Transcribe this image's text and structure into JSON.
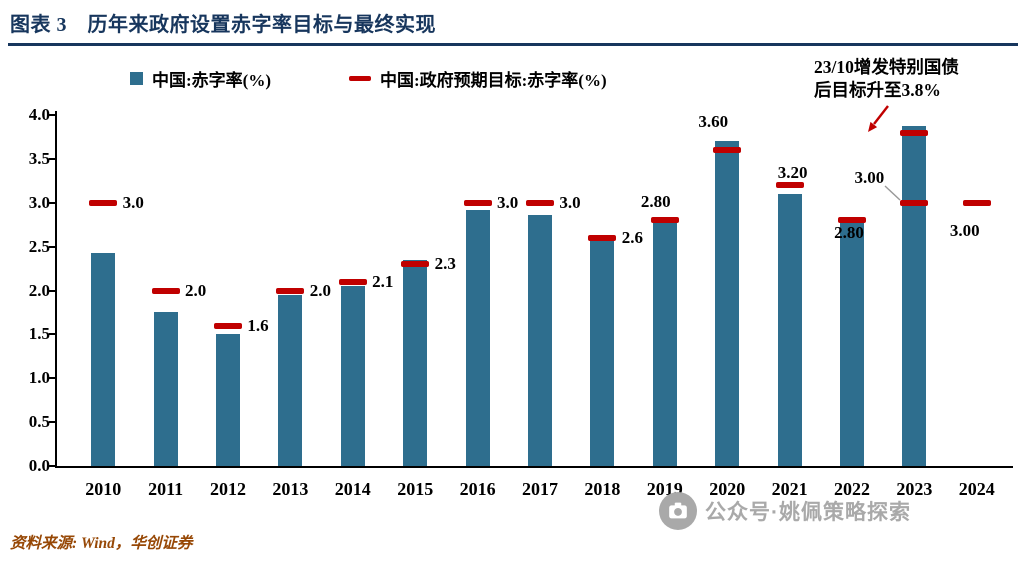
{
  "header": {
    "title": "图表 3　历年来政府设置赤字率目标与最终实现"
  },
  "legend": {
    "items": [
      {
        "label": "中国:赤字率(%)"
      },
      {
        "label": "中国:政府预期目标:赤字率(%)"
      }
    ]
  },
  "annotation": {
    "line1": "23/10增发特别国债",
    "line2": "后目标升至3.8%"
  },
  "source": {
    "text": "资料来源: Wind，华创证券"
  },
  "watermark": {
    "text": "公众号·姚佩策略探索"
  },
  "colors": {
    "bar": "#2e6e8e",
    "target": "#c00000",
    "title_navy": "#17365d",
    "source_brown": "#974806",
    "watermark_gray": "#a9a9a9"
  },
  "chart_data": {
    "type": "bar",
    "title": "历年来政府设置赤字率目标与最终实现",
    "categories": [
      "2010",
      "2011",
      "2012",
      "2013",
      "2014",
      "2015",
      "2016",
      "2017",
      "2018",
      "2019",
      "2020",
      "2021",
      "2022",
      "2023",
      "2024"
    ],
    "series": [
      {
        "name": "中国:赤字率(%)",
        "type": "bar",
        "color": "#2e6e8e",
        "values": [
          2.43,
          1.75,
          1.5,
          1.95,
          2.05,
          2.35,
          2.92,
          2.86,
          2.6,
          2.78,
          3.7,
          3.1,
          2.78,
          3.87,
          null
        ]
      },
      {
        "name": "中国:政府预期目标:赤字率(%)",
        "type": "dash",
        "color": "#c00000",
        "values": [
          3.0,
          2.0,
          1.6,
          2.0,
          2.1,
          2.3,
          3.0,
          3.0,
          2.6,
          2.8,
          3.6,
          3.2,
          2.8,
          3.0,
          3.0
        ]
      }
    ],
    "revised_target": {
      "year": "2023",
      "value": 3.8,
      "note": "23/10增发特别国债后目标升至3.8%"
    },
    "point_labels": {
      "text": [
        "3.0",
        "2.0",
        "1.6",
        "2.0",
        "2.1",
        "2.3",
        "3.0",
        "3.0",
        "2.6",
        "2.80",
        "3.60",
        "3.20",
        "2.80",
        "3.00",
        "3.00"
      ],
      "dx": [
        30,
        30,
        30,
        30,
        30,
        30,
        30,
        30,
        30,
        -9,
        -14,
        3,
        -3,
        -45,
        -12
      ],
      "dy": [
        0,
        0,
        0,
        0,
        0,
        0,
        0,
        0,
        0,
        -18,
        -28,
        -12,
        13,
        -25,
        28
      ]
    },
    "ylim": [
      0,
      4.0
    ],
    "ytick_step": 0.5,
    "yticks": [
      "4.0",
      "3.5",
      "3.0",
      "2.5",
      "2.0",
      "1.5",
      "1.0",
      "0.5",
      "0.0"
    ],
    "xlabel": "",
    "ylabel": "",
    "grid": false,
    "legend_position": "top"
  }
}
